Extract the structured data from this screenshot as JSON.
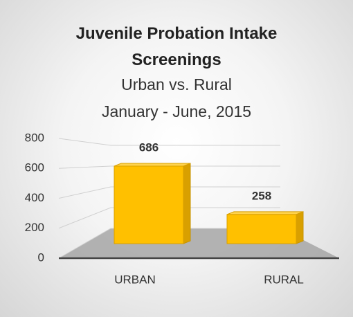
{
  "chart_data": {
    "type": "bar3d",
    "title": "Juvenile Probation Intake Screenings",
    "subtitle": [
      "Urban vs. Rural",
      "January - June, 2015"
    ],
    "categories": [
      "URBAN",
      "RURAL"
    ],
    "values": [
      686,
      258
    ],
    "color": "#ffc000",
    "ylim": [
      0,
      800
    ],
    "yticks": [
      0,
      200,
      400,
      600,
      800
    ],
    "grid": true
  }
}
